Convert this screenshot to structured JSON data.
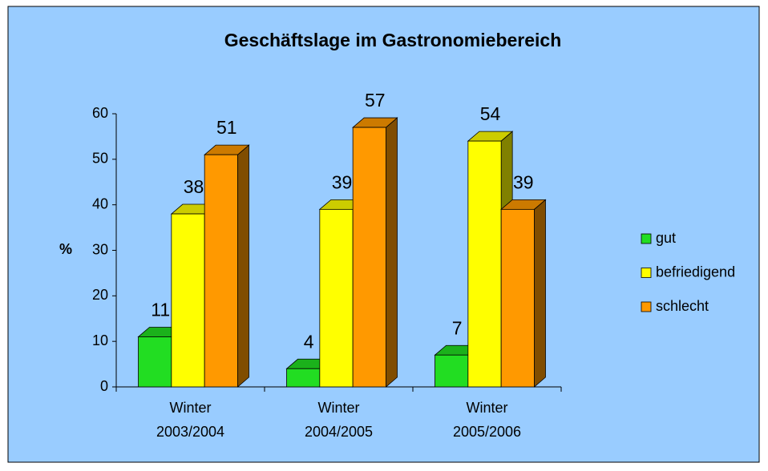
{
  "chart_data": {
    "type": "bar3d",
    "title": "Geschäftslage im Gastronomiebereich",
    "y_label": "%",
    "categories": [
      "Winter 2003/2004",
      "Winter 2004/2005",
      "Winter 2005/2006"
    ],
    "series": [
      {
        "name": "gut",
        "color": "#22dd22",
        "values": [
          11,
          4,
          7
        ]
      },
      {
        "name": "befriedigend",
        "color": "#ffff00",
        "values": [
          38,
          39,
          54
        ]
      },
      {
        "name": "schlecht",
        "color": "#ff9900",
        "values": [
          51,
          57,
          39
        ]
      }
    ],
    "ylim": [
      0,
      60
    ],
    "yticks": [
      0,
      10,
      20,
      30,
      40,
      50,
      60
    ],
    "legend": "right"
  }
}
